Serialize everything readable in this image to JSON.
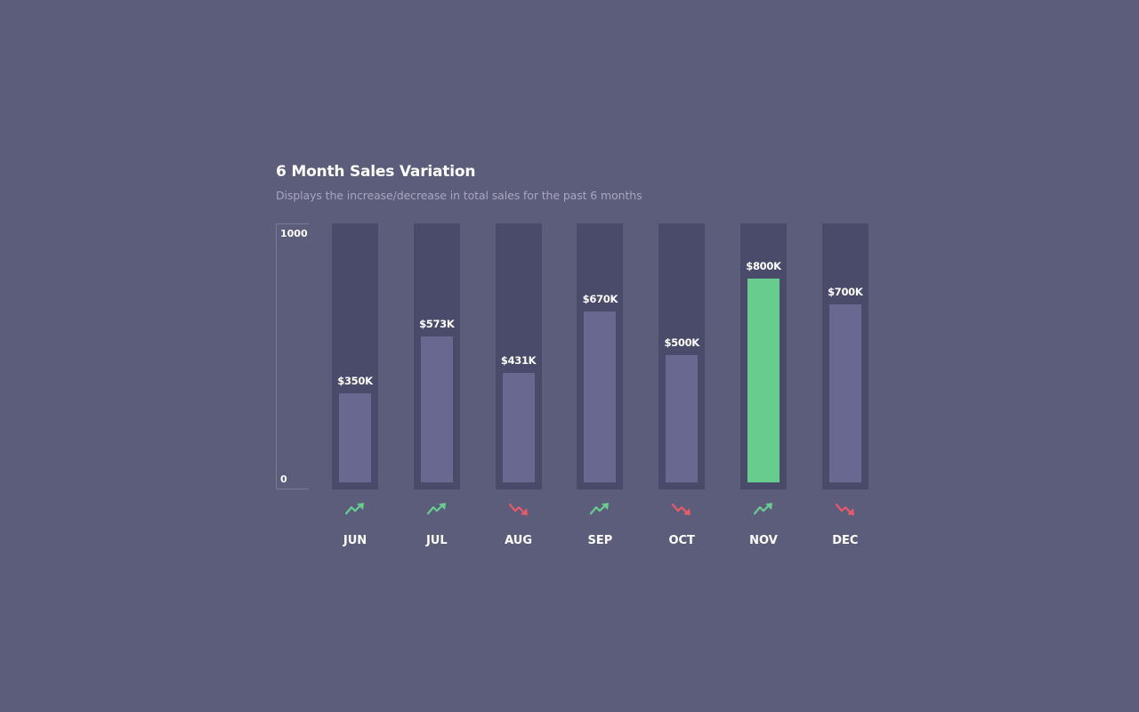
{
  "chart_data": {
    "type": "bar",
    "title": "6 Month Sales Variation",
    "subtitle": "Displays the increase/decrease in total sales for the past 6 months",
    "categories": [
      "JUN",
      "JUL",
      "AUG",
      "SEP",
      "OCT",
      "NOV",
      "DEC"
    ],
    "values": [
      350,
      573,
      431,
      670,
      500,
      800,
      700
    ],
    "value_labels": [
      "$350K",
      "$573K",
      "$431K",
      "$670K",
      "$500K",
      "$800K",
      "$700K"
    ],
    "trends": [
      "up",
      "up",
      "down",
      "up",
      "down",
      "up",
      "down"
    ],
    "highlight_index": 5,
    "ylim": [
      0,
      1000
    ],
    "y_ticks": [
      "1000",
      "0"
    ],
    "xlabel": "",
    "ylabel": "",
    "grid": false
  },
  "colors": {
    "background": "#5c5c7b",
    "track": "#4a4a6a",
    "bar": "#686890",
    "highlight": "#68cc8f",
    "trend_up": "#68cc8f",
    "trend_down": "#e8596a",
    "subtitle": "#a7a7c2"
  },
  "icons": {
    "up": "trending-up-icon",
    "down": "trending-down-icon"
  }
}
